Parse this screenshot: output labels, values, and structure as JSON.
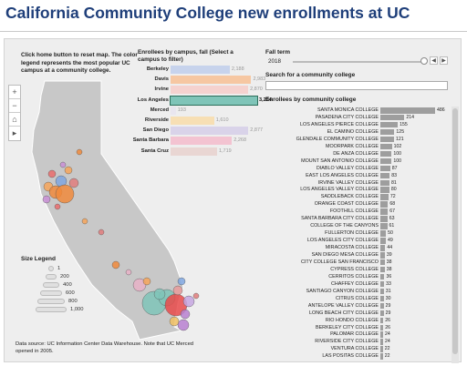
{
  "title": "California Community College new enrollments at UC",
  "map": {
    "instructions": "Click home button to reset map. The color legend represents the most popular UC campus at a community college.",
    "zoom_in": "+",
    "zoom_out": "−",
    "home": "⌂",
    "expand": "▸",
    "size_legend": {
      "title": "Size Legend",
      "values": [
        "1",
        "200",
        "400",
        "600",
        "800",
        "1,000"
      ]
    },
    "source": "Data source: UC Information Center Data Warehouse. Note that UC Merced opened in 2005."
  },
  "colors": {
    "Berkeley": "#c7d3ec",
    "Davis": "#f6c7a2",
    "Irvine": "#f5d2cf",
    "Los Angeles": "#7fc4b8",
    "Merced": "#e9e6ef",
    "Riverside": "#f7dfb4",
    "San Diego": "#d9d3e9",
    "Santa Barbara": "#f3c3d1",
    "Santa Cruz": "#e9d6d3",
    "cc_bar": "#9e9e9e",
    "map_fill": "#c8c8c8"
  },
  "campus_panel": {
    "title": "Enrollees by campus, fall (Select a campus to filter)"
  },
  "controls": {
    "fall_term_label": "Fall term",
    "fall_term_value": "2018",
    "search_label": "Search for a community college",
    "search_placeholder": "",
    "list_title": "Enrollees by community college",
    "slider_left": "◀",
    "slider_right": "▶"
  },
  "chart_data": [
    {
      "type": "bar",
      "orientation": "horizontal",
      "title": "Enrollees by campus, fall (Select a campus to filter)",
      "selected": "Los Angeles",
      "categories": [
        "Berkeley",
        "Davis",
        "Irvine",
        "Los Angeles",
        "Merced",
        "Riverside",
        "San Diego",
        "Santa Barbara",
        "Santa Cruz"
      ],
      "values": [
        2188,
        2983,
        2870,
        3204,
        193,
        1610,
        2877,
        2268,
        1719
      ],
      "value_labels": [
        "2,188",
        "2,983",
        "2,870",
        "3,204",
        "193",
        "1,610",
        "2,877",
        "2,268",
        "1,719"
      ],
      "xlim": [
        0,
        3204
      ]
    },
    {
      "type": "bar",
      "orientation": "horizontal",
      "title": "Enrollees by community college",
      "categories": [
        "SANTA MONICA COLLEGE",
        "PASADENA CITY COLLEGE",
        "LOS ANGELES PIERCE COLLEGE",
        "EL CAMINO COLLEGE",
        "GLENDALE COMMUNITY COLLEGE",
        "MOORPARK COLLEGE",
        "DE ANZA COLLEGE",
        "MOUNT SAN ANTONIO COLLEGE",
        "DIABLO VALLEY COLLEGE",
        "EAST LOS ANGELES COLLEGE",
        "IRVINE VALLEY COLLEGE",
        "LOS ANGELES VALLEY COLLEGE",
        "SADDLEBACK COLLEGE",
        "ORANGE COAST COLLEGE",
        "FOOTHILL COLLEGE",
        "SANTA BARBARA CITY COLLEGE",
        "COLLEGE OF THE CANYONS",
        "FULLERTON COLLEGE",
        "LOS ANGELES CITY COLLEGE",
        "MIRACOSTA COLLEGE",
        "SAN DIEGO MESA COLLEGE",
        "CITY COLLEGE SAN FRANCISCO",
        "CYPRESS COLLEGE",
        "CERRITOS COLLEGE",
        "CHAFFEY COLLEGE",
        "SANTIAGO CANYON COLLEGE",
        "CITRUS COLLEGE",
        "ANTELOPE VALLEY COLLEGE",
        "LONG BEACH CITY COLLEGE",
        "RIO HONDO COLLEGE",
        "BERKELEY CITY COLLEGE",
        "PALOMAR COLLEGE",
        "RIVERSIDE CITY COLLEGE",
        "VENTURA COLLEGE",
        "LAS POSITAS COLLEGE"
      ],
      "values": [
        486,
        214,
        155,
        125,
        121,
        102,
        100,
        100,
        87,
        83,
        81,
        80,
        72,
        68,
        67,
        63,
        61,
        50,
        49,
        44,
        39,
        38,
        38,
        36,
        33,
        31,
        30,
        29,
        29,
        26,
        26,
        24,
        24,
        22,
        22
      ],
      "xlim": [
        0,
        486
      ]
    }
  ]
}
